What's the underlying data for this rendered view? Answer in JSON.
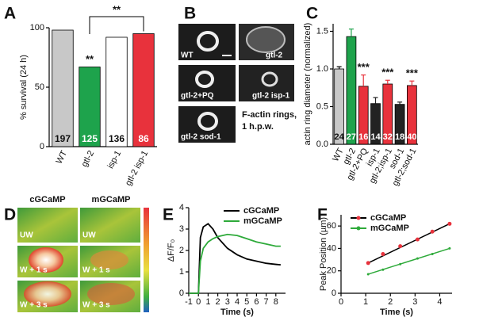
{
  "figure": {
    "panel_labels": [
      "A",
      "B",
      "C",
      "D",
      "E",
      "F"
    ],
    "actin_images": {
      "labels": [
        "WT",
        "gtl-2",
        "gtl-2+PQ",
        "gtl-2 isp-1",
        "gtl-2 sod-1"
      ],
      "caption": [
        "F-actin rings,",
        "1 h.p.w."
      ]
    },
    "calcium_images": {
      "columns": [
        "cGCaMP",
        "mGCaMP"
      ],
      "labels": [
        [
          "UW",
          "UW"
        ],
        [
          "W + 1 s",
          "W + 1 s"
        ],
        [
          "W + 3 s",
          "W + 3 s"
        ]
      ]
    }
  },
  "chart_data": [
    {
      "type": "bar",
      "y_label": "% survival (24 h)",
      "categories": [
        "WT",
        "gtl-2",
        "isp-1",
        "gtl-2 isp-1"
      ],
      "values": [
        98,
        67,
        92,
        95
      ],
      "colors": [
        "#c8c8c8",
        "#1ea34c",
        "#ffffff",
        "#e8323c"
      ],
      "n_labels": [
        197,
        125,
        136,
        86
      ],
      "significance": [
        null,
        "**",
        null,
        null
      ],
      "bracket_label": "**",
      "ylim": [
        0,
        100
      ],
      "yticks": [
        0,
        50,
        100
      ]
    },
    {
      "type": "bar",
      "y_label": "actin ring diameter (normalized)",
      "categories": [
        "WT",
        "gtl-2",
        "gtl-2+PQ",
        "isp-1",
        "gtl-2;isp-1",
        "sod-1",
        "gtl-2;sod-1"
      ],
      "values": [
        1.0,
        1.43,
        0.77,
        0.54,
        0.8,
        0.53,
        0.78
      ],
      "errors": [
        0.03,
        0.1,
        0.15,
        0.08,
        0.05,
        0.03,
        0.06
      ],
      "colors": [
        "#c8c8c8",
        "#1ea34c",
        "#e8323c",
        "#222222",
        "#e8323c",
        "#222222",
        "#e8323c"
      ],
      "n_labels": [
        24,
        27,
        16,
        14,
        32,
        18,
        40
      ],
      "significance": [
        null,
        null,
        "***",
        null,
        "***",
        null,
        "***"
      ],
      "ylim": [
        0,
        1.6
      ],
      "yticks": [
        {
          "value": 0,
          "label": "0.0"
        },
        0.5,
        {
          "value": 1,
          "label": "1.0"
        },
        1.5
      ]
    },
    {
      "type": "line",
      "x_label": "Time (s)",
      "y_label": "ΔF/F₀",
      "legend": "upper right",
      "x": [
        -1,
        -0.5,
        0,
        0.2,
        0.5,
        1,
        1.5,
        2,
        3,
        4,
        5,
        6,
        7,
        8,
        8.5
      ],
      "series": [
        {
          "name": "cGCaMP",
          "color": "#000000",
          "values": [
            0,
            0,
            0,
            2.6,
            3.1,
            3.25,
            3.0,
            2.6,
            2.1,
            1.8,
            1.6,
            1.5,
            1.4,
            1.35,
            1.33
          ]
        },
        {
          "name": "mGCaMP",
          "color": "#2eaa3a",
          "values": [
            0,
            0,
            0,
            1.5,
            2.1,
            2.4,
            2.55,
            2.65,
            2.75,
            2.7,
            2.55,
            2.4,
            2.3,
            2.2,
            2.2
          ]
        }
      ],
      "xlim": [
        -1,
        9
      ],
      "xticks": [
        -1,
        0,
        1,
        2,
        3,
        4,
        5,
        6,
        7,
        8
      ],
      "ylim": [
        0,
        4
      ],
      "yticks": [
        0,
        1,
        2,
        3,
        4
      ]
    },
    {
      "type": "scatter",
      "x_label": "Time (s)",
      "y_label": "Peak Position (µm)",
      "legend": "upper left",
      "series": [
        {
          "name": "cGCaMP",
          "color": "#e8323c",
          "line_color": "#000000",
          "x": [
            1.1,
            1.7,
            2.4,
            3.1,
            3.7,
            4.4
          ],
          "values": [
            27,
            35,
            42,
            48,
            55,
            62
          ]
        },
        {
          "name": "mGCaMP",
          "color": "#2eaa3a",
          "line_color": "#2eaa3a",
          "x": [
            1.1,
            1.7,
            2.4,
            3.1,
            3.7,
            4.4
          ],
          "values": [
            17,
            21,
            26,
            31,
            35,
            40
          ]
        }
      ],
      "xlim": [
        0,
        4.5
      ],
      "xticks": [
        0,
        1,
        2,
        3,
        4
      ],
      "ylim": [
        0,
        70
      ],
      "yticks": [
        0,
        20,
        40,
        60
      ]
    }
  ]
}
